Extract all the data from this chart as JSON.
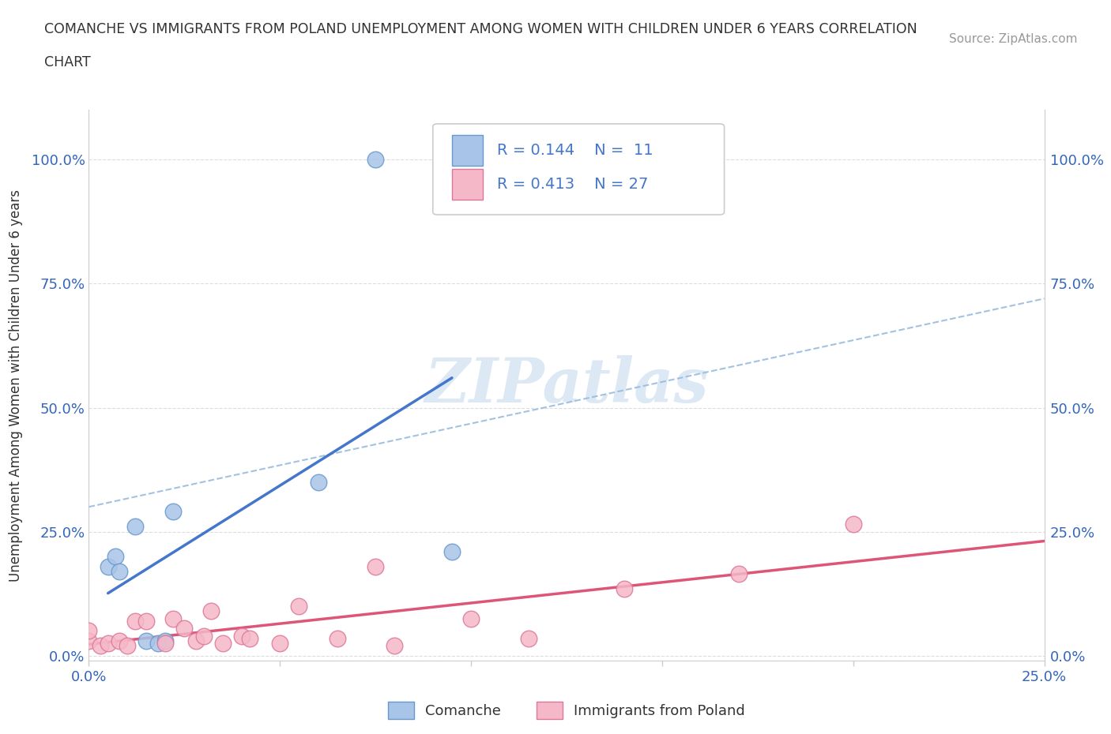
{
  "title_line1": "COMANCHE VS IMMIGRANTS FROM POLAND UNEMPLOYMENT AMONG WOMEN WITH CHILDREN UNDER 6 YEARS CORRELATION",
  "title_line2": "CHART",
  "source": "Source: ZipAtlas.com",
  "ylabel": "Unemployment Among Women with Children Under 6 years",
  "xlim": [
    0.0,
    0.25
  ],
  "ylim": [
    -0.01,
    1.1
  ],
  "xtick_positions": [
    0.0,
    0.05,
    0.1,
    0.15,
    0.2,
    0.25
  ],
  "xtick_labels": [
    "0.0%",
    "",
    "",
    "",
    "",
    "25.0%"
  ],
  "ytick_positions": [
    0.0,
    0.25,
    0.5,
    0.75,
    1.0
  ],
  "ytick_labels": [
    "0.0%",
    "25.0%",
    "50.0%",
    "75.0%",
    "100.0%"
  ],
  "comanche_color": "#a8c4e8",
  "comanche_edge": "#6699cc",
  "comanche_line_color": "#4477cc",
  "poland_color": "#f5b8c8",
  "poland_edge": "#dd7799",
  "poland_line_color": "#dd5577",
  "dashed_line_color": "#99bbdd",
  "watermark_color": "#dde8f5",
  "comanche_x": [
    0.005,
    0.007,
    0.008,
    0.012,
    0.015,
    0.018,
    0.02,
    0.022,
    0.06,
    0.075,
    0.095
  ],
  "comanche_y": [
    0.18,
    0.2,
    0.17,
    0.26,
    0.03,
    0.025,
    0.03,
    0.29,
    0.35,
    1.0,
    0.21
  ],
  "poland_x": [
    0.0,
    0.0,
    0.003,
    0.005,
    0.008,
    0.01,
    0.012,
    0.015,
    0.02,
    0.022,
    0.025,
    0.028,
    0.03,
    0.032,
    0.035,
    0.04,
    0.042,
    0.05,
    0.055,
    0.065,
    0.075,
    0.08,
    0.1,
    0.115,
    0.14,
    0.17,
    0.2
  ],
  "poland_y": [
    0.03,
    0.05,
    0.02,
    0.025,
    0.03,
    0.02,
    0.07,
    0.07,
    0.025,
    0.075,
    0.055,
    0.03,
    0.04,
    0.09,
    0.025,
    0.04,
    0.035,
    0.025,
    0.1,
    0.035,
    0.18,
    0.02,
    0.075,
    0.035,
    0.135,
    0.165,
    0.265
  ],
  "background_color": "#ffffff",
  "grid_color": "#dddddd",
  "axis_color": "#cccccc",
  "tick_label_color": "#3366bb",
  "title_color": "#333333",
  "legend_label_color": "#333333"
}
